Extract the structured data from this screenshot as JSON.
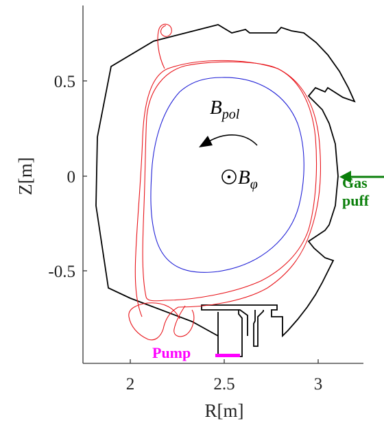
{
  "axes": {
    "xlabel": "R[m]",
    "ylabel": "Z[m]",
    "xticks": [
      "2",
      "2.5",
      "3"
    ],
    "yticks": [
      "0.5",
      "0",
      "-0.5"
    ]
  },
  "labels": {
    "bpol": {
      "main": "B",
      "sub": "pol"
    },
    "bphi": {
      "symbol": "⊙",
      "main": "B",
      "sub": "φ"
    },
    "gas_line1": "Gas",
    "gas_line2": "puff",
    "pump": "Pump"
  },
  "colors": {
    "wall": "#000000",
    "separatrix": "#e8141a",
    "core_flux": "#1f1fd6",
    "gas_puff": "#0a7f0a",
    "pump": "#ff00ff",
    "axes": "#333333"
  }
}
